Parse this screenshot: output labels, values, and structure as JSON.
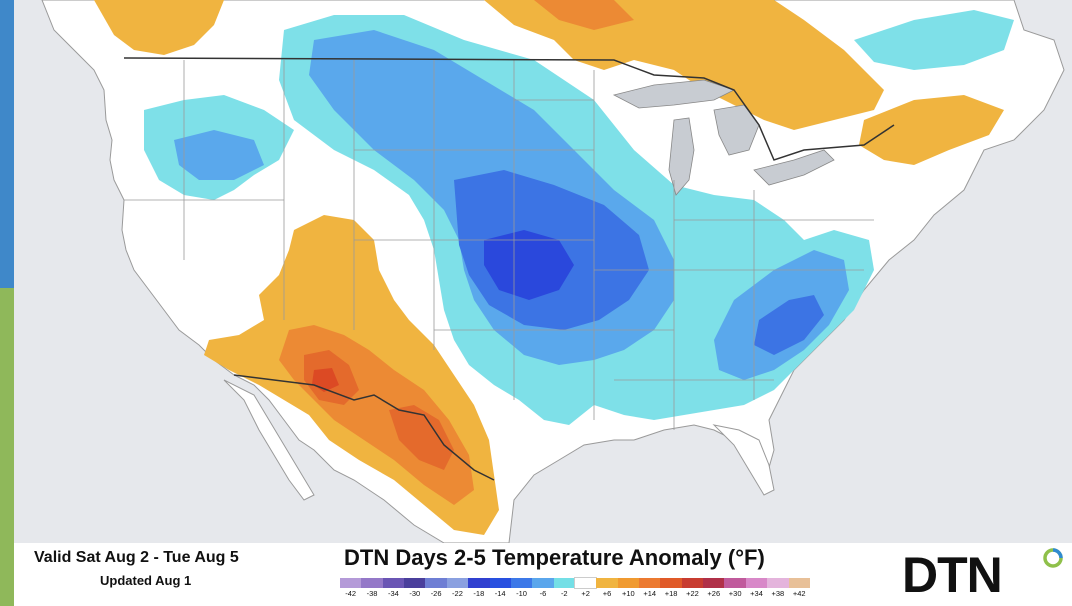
{
  "header": {
    "title": "DTN Days 2-5 Temperature Anomaly (°F)",
    "valid": "Valid Sat Aug 2 - Tue Aug 5",
    "updated": "Updated Aug 1"
  },
  "logo": {
    "text": "DTN",
    "mark": "green-blue-ring-icon"
  },
  "legend": {
    "ticks": [
      "-42",
      "-38",
      "-34",
      "-30",
      "-26",
      "-22",
      "-18",
      "-14",
      "-10",
      "-6",
      "-2",
      "+2",
      "+6",
      "+10",
      "+14",
      "+18",
      "+22",
      "+26",
      "+30",
      "+34",
      "+38",
      "+42"
    ],
    "colors": [
      "#b49ad8",
      "#9478c8",
      "#6a55b4",
      "#4a3f9c",
      "#6e7ed4",
      "#8aa0e0",
      "#3040d0",
      "#2850e0",
      "#3c78e8",
      "#5aa6ec",
      "#74dfe6",
      "#ffffff",
      "#f0b440",
      "#f09a30",
      "#ec7a30",
      "#e05a28",
      "#c83c30",
      "#b03048",
      "#c05a9c",
      "#d888c8",
      "#e4b4dc",
      "#e8c098"
    ]
  },
  "colors": {
    "ocean": "#e6e8ec",
    "land": "#ffffff",
    "cool_light": "#7ee0e8",
    "cool_mid": "#5aa8ec",
    "cool_deep": "#3c74e4",
    "cool_core": "#2a48dc",
    "warm_light": "#f0b440",
    "warm_mid": "#ec8a34",
    "warm_deep": "#e46a2c",
    "warm_core": "#dc4a24",
    "border": "#333333",
    "state_line": "#9a9a9a",
    "lakes": "#c8ccd2"
  }
}
